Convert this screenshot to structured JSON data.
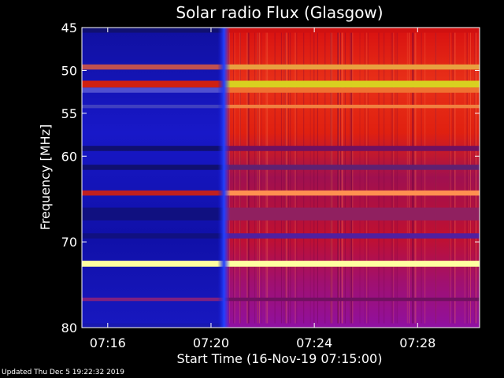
{
  "chart_data": {
    "type": "heatmap",
    "title": "Solar radio Flux (Glasgow)",
    "xlabel": "Start Time (16-Nov-19 07:15:00)",
    "ylabel": "Frequency [MHz]",
    "x_unit": "minutes after 07:00",
    "xlim": [
      15.0,
      30.4
    ],
    "ylim": [
      80,
      45
    ],
    "y_axis_inverted": true,
    "x_ticks": [
      {
        "value": 16,
        "label": "07:16"
      },
      {
        "value": 20,
        "label": "07:20"
      },
      {
        "value": 24,
        "label": "07:24"
      },
      {
        "value": 28,
        "label": "07:28"
      }
    ],
    "y_ticks": [
      {
        "value": 45,
        "label": "45"
      },
      {
        "value": 50,
        "label": "50"
      },
      {
        "value": 55,
        "label": "55"
      },
      {
        "value": 60,
        "label": "60"
      },
      {
        "value": 70,
        "label": "70"
      },
      {
        "value": 80,
        "label": "80"
      }
    ],
    "transition_time": 20.5,
    "colormap": {
      "low": "#1010c8",
      "mid": "#e02010",
      "high": "#ffff80"
    },
    "bands": [
      {
        "freq_from": 45.0,
        "freq_to": 45.6,
        "before": "#101070",
        "after": "#d01010"
      },
      {
        "freq_from": 49.3,
        "freq_to": 49.9,
        "before": "#c05050",
        "after": "#e8a040"
      },
      {
        "freq_from": 51.2,
        "freq_to": 52.0,
        "before": "#d02010",
        "after": "#d8d020"
      },
      {
        "freq_from": 52.0,
        "freq_to": 52.6,
        "before": "#5050d0",
        "after": "#f07030"
      },
      {
        "freq_from": 54.0,
        "freq_to": 54.4,
        "before": "#4040c0",
        "after": "#f08040"
      },
      {
        "freq_from": 58.8,
        "freq_to": 59.4,
        "before": "#101070",
        "after": "#701060"
      },
      {
        "freq_from": 61.0,
        "freq_to": 61.6,
        "before": "#101070",
        "after": "#602070"
      },
      {
        "freq_from": 64.0,
        "freq_to": 64.6,
        "before": "#c02020",
        "after": "#ff9050"
      },
      {
        "freq_from": 66.0,
        "freq_to": 67.5,
        "before": "#101080",
        "after": "#902060"
      },
      {
        "freq_from": 69.0,
        "freq_to": 69.6,
        "before": "#101080",
        "after": "#5020a0"
      },
      {
        "freq_from": 72.2,
        "freq_to": 72.9,
        "before": "#ffffa0",
        "after": "#ffffa0"
      },
      {
        "freq_from": 76.5,
        "freq_to": 76.9,
        "before": "#802080",
        "after": "#701060"
      },
      {
        "freq_from": 79.5,
        "freq_to": 80.0,
        "before": "#1818b0",
        "after": "#9010a0"
      }
    ]
  },
  "footer": {
    "updated": "Updated Thu Dec  5 19:22:32 2019"
  }
}
